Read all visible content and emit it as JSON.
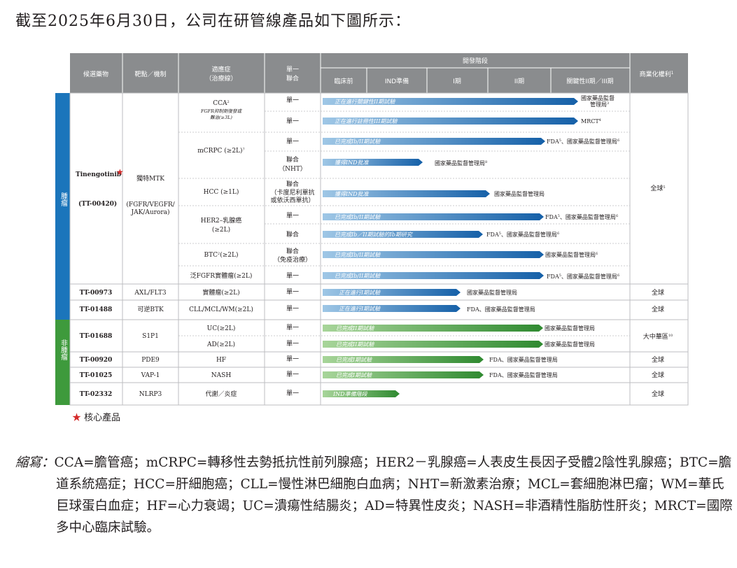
{
  "heading": "截至2025年6月30日，公司在研管線產品如下圖所示：",
  "table": {
    "headers": {
      "candidate": "候選藥物",
      "target": "靶點／機制",
      "indication": "適應症",
      "indication_sub": "（治療線）",
      "mono": "單一",
      "combo": "聯合",
      "stage_group": "開發階段",
      "preclinical": "臨床前",
      "ind_prep": "IND準備",
      "phase1": "I期",
      "phase2": "II期",
      "pivotal": "關鍵性II期／III期",
      "rights": "商業化權利",
      "rights_sup": "1"
    },
    "side_labels": {
      "oncology": "腫瘤",
      "non_oncology": "非腫瘤"
    },
    "star_symbol": "★",
    "tinengotinib": {
      "name": "Tinengotinib",
      "code": "(TT-00420)",
      "target_line1": "獨特MTK",
      "target_line2": "(FGFR/VEGFR/",
      "target_line3": "JAK/Aurora)",
      "rights": "全球",
      "rights_sup": "5"
    },
    "rows": [
      {
        "indication": "CCA",
        "ind_sup": "2",
        "ind_note1": "FGFR抑制劑復發或",
        "ind_note2": "難治(≥3L)",
        "mono_combo": "單一",
        "bar": "正在進行關鍵性II期試驗",
        "progress": "pivotal",
        "regulator": "國家藥品監督",
        "regulator2": "管理局",
        "reg_sup": "3",
        "color": "#1b75bb"
      },
      {
        "indication": "",
        "mono_combo": "單一",
        "bar": "正在進行註冊性III期試驗",
        "progress": "pivotal",
        "regulator": "MRCT",
        "reg_sup": "4",
        "color": "#1b75bb"
      },
      {
        "indication": "mCRPC (≥2L)",
        "ind_sup": "7",
        "mono_combo": "單一",
        "bar": "已完成Ib/II期試驗",
        "progress": "phase2",
        "regulator": "FDA",
        "reg_sup": "5",
        "regulator_b": "、國家藥品監督管理局",
        "reg_sup_b": "6",
        "color": "#1b75bb"
      },
      {
        "indication": "",
        "mono_combo": "聯合",
        "mono_combo2": "（NHT）",
        "bar": "獲得IND批准",
        "progress": "ind",
        "regulator": "國家藥品監督管理局",
        "reg_sup": "8",
        "color": "#1b75bb"
      },
      {
        "indication": "HCC (≥1L)",
        "mono_combo": "聯合",
        "mono_combo2": "（卡度尼利單抗",
        "mono_combo3": "或依沃西單抗）",
        "bar": "獲得IND批准",
        "progress": "ind2",
        "regulator": "國家藥品監督管理局",
        "color": "#1b75bb"
      },
      {
        "indication": "HER2–乳腺癌",
        "indication2": "(≥2L)",
        "mono_combo": "單一",
        "bar": "已完成Ib/II期試驗",
        "progress": "phase2",
        "regulator": "FDA",
        "reg_sup": "5",
        "regulator_b": "、國家藥品監督管理局",
        "reg_sup_b": "6",
        "color": "#1b75bb"
      },
      {
        "indication": "",
        "mono_combo": "聯合",
        "bar": "已完成Ib／II期試驗的Ib期研究",
        "progress": "phase1",
        "regulator": "FDA",
        "reg_sup": "5",
        "regulator_b": "、國家藥品監督管理局",
        "reg_sup_b": "6",
        "color": "#1b75bb"
      },
      {
        "indication": "BTC",
        "ind_sup": "2",
        "ind_tail": "(≥2L)",
        "mono_combo": "聯合",
        "mono_combo2": "（免疫治療）",
        "bar": "已完成Ib/II期試驗",
        "progress": "phase2",
        "regulator": "國家藥品監督管理局",
        "reg_sup": "6",
        "color": "#1b75bb"
      },
      {
        "indication": "泛FGFR實體瘤(≥2L)",
        "mono_combo": "單一",
        "bar": "已完成Ib/II期試驗",
        "progress": "phase2",
        "regulator": "FDA",
        "reg_sup": "5",
        "regulator_b": "、國家藥品監督管理局",
        "reg_sup_b": "6",
        "color": "#1b75bb"
      }
    ],
    "other_rows": [
      {
        "candidate": "TT-00973",
        "target": "AXL/FLT3",
        "indication": "實體瘤(≥2L)",
        "mono_combo": "單一",
        "bar": "正在進行I期試驗",
        "regulator": "國家藥品監督管理局",
        "rights": "全球",
        "color": "#1b75bb"
      },
      {
        "candidate": "TT-01488",
        "target": "可逆BTK",
        "indication": "CLL/MCL/WM(≥2L)",
        "mono_combo": "單一",
        "bar": "正在進行I期試驗",
        "regulator": "FDA、國家藥品監督管理局",
        "rights": "全球",
        "color": "#1b75bb"
      },
      {
        "candidate": "TT-01688",
        "target": "S1P1",
        "indication": "UC(≥2L)",
        "mono_combo": "單一",
        "bar": "已完成II期試驗",
        "regulator": "國家藥品監督管理局",
        "rights": "大中華區",
        "rights_sup": "10",
        "color": "#3e9a3c"
      },
      {
        "candidate": "",
        "target": "",
        "indication": "AD(≥2L)",
        "mono_combo": "單一",
        "bar": "已完成II期試驗",
        "regulator": "國家藥品監督管理局",
        "rights": "",
        "color": "#3e9a3c"
      },
      {
        "candidate": "TT-00920",
        "target": "PDE9",
        "indication": "HF",
        "mono_combo": "單一",
        "bar": "已完成I期試驗",
        "regulator": "FDA、國家藥品監督管理局",
        "rights": "全球",
        "color": "#3e9a3c"
      },
      {
        "candidate": "TT-01025",
        "target": "VAP-1",
        "indication": "NASH",
        "mono_combo": "單一",
        "bar": "已完成I期試驗",
        "regulator": "FDA、國家藥品監督管理局",
        "rights": "全球",
        "color": "#3e9a3c"
      },
      {
        "candidate": "TT-02332",
        "target": "NLRP3",
        "indication": "代謝／炎症",
        "mono_combo": "單一",
        "bar": "IND準備階段",
        "regulator": "",
        "rights": "全球",
        "color": "#3e9a3c"
      }
    ]
  },
  "legend": {
    "star": "★",
    "text": "核心產品"
  },
  "abbreviations": {
    "label": "縮寫：",
    "body": "CCA=膽管癌；mCRPC=轉移性去勢抵抗性前列腺癌；HER2－乳腺癌=人表皮生長因子受體2陰性乳腺癌；BTC=膽道系統癌症；HCC=肝細胞癌；CLL=慢性淋巴細胞白血病；NHT=新激素治療；MCL=套細胞淋巴瘤；WM=華氏巨球蛋白血症；HF=心力衰竭；UC=潰瘍性結腸炎；AD=特異性皮炎；NASH=非酒精性脂肪性肝炎；MRCT=國際多中心臨床試驗。"
  },
  "colors": {
    "header_bg": "#8a8c8e",
    "oncology": "#1b75bb",
    "non_oncology": "#3e9a3c",
    "star": "#d42a2a"
  }
}
